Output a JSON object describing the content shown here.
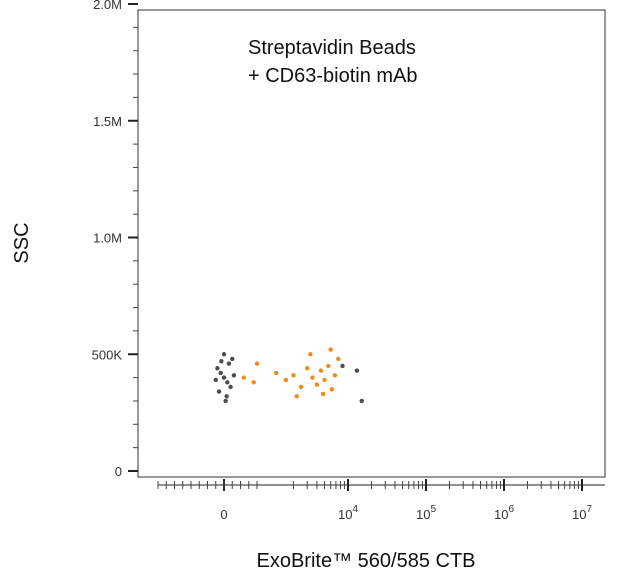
{
  "chart_data": {
    "type": "scatter",
    "title": "",
    "annotation": [
      "Streptavidin Beads",
      "+ CD63-biotin mAb"
    ],
    "xlabel": "ExoBrite™ 560/585 CTB",
    "ylabel": "SSC",
    "x_scale": "biexponential",
    "y_scale": "linear",
    "ylim": [
      0,
      2000000
    ],
    "y_ticks": [
      {
        "value": 0,
        "label": "0"
      },
      {
        "value": 500000,
        "label": "500K"
      },
      {
        "value": 1000000,
        "label": "1.0M"
      },
      {
        "value": 1500000,
        "label": "1.5M"
      },
      {
        "value": 2000000,
        "label": "2.0M"
      }
    ],
    "x_ticks": [
      {
        "value": 0,
        "base": "0",
        "exp": ""
      },
      {
        "value": 10000,
        "base": "10",
        "exp": "4"
      },
      {
        "value": 100000,
        "base": "10",
        "exp": "5"
      },
      {
        "value": 1000000,
        "base": "10",
        "exp": "6"
      },
      {
        "value": 10000000,
        "base": "10",
        "exp": "7"
      }
    ],
    "grid": false,
    "series": [
      {
        "color": "#4d4d4d",
        "points": [
          {
            "x": 0,
            "y": 400000
          },
          {
            "x": 100,
            "y": 380000
          },
          {
            "x": -100,
            "y": 420000
          },
          {
            "x": 200,
            "y": 360000
          },
          {
            "x": -200,
            "y": 440000
          },
          {
            "x": 150,
            "y": 460000
          },
          {
            "x": -150,
            "y": 340000
          },
          {
            "x": 50,
            "y": 300000
          },
          {
            "x": 250,
            "y": 480000
          },
          {
            "x": -250,
            "y": 390000
          },
          {
            "x": 300,
            "y": 410000
          },
          {
            "x": 0,
            "y": 500000
          },
          {
            "x": 80,
            "y": 320000
          },
          {
            "x": -80,
            "y": 470000
          }
        ]
      },
      {
        "color": "#f08a1c",
        "points": [
          {
            "x": 600,
            "y": 400000
          },
          {
            "x": 900,
            "y": 380000
          },
          {
            "x": 1200,
            "y": 420000
          },
          {
            "x": 1600,
            "y": 390000
          },
          {
            "x": 2000,
            "y": 410000
          },
          {
            "x": 2500,
            "y": 360000
          },
          {
            "x": 3000,
            "y": 440000
          },
          {
            "x": 3500,
            "y": 400000
          },
          {
            "x": 4000,
            "y": 370000
          },
          {
            "x": 4500,
            "y": 430000
          },
          {
            "x": 5000,
            "y": 390000
          },
          {
            "x": 5600,
            "y": 450000
          },
          {
            "x": 6200,
            "y": 350000
          },
          {
            "x": 6800,
            "y": 410000
          },
          {
            "x": 7500,
            "y": 480000
          },
          {
            "x": 2200,
            "y": 320000
          },
          {
            "x": 3300,
            "y": 500000
          },
          {
            "x": 4800,
            "y": 330000
          },
          {
            "x": 1000,
            "y": 460000
          },
          {
            "x": 6000,
            "y": 520000
          }
        ]
      },
      {
        "color": "#4d4d4d",
        "points": [
          {
            "x": 8500,
            "y": 450000
          },
          {
            "x": 13000,
            "y": 430000
          },
          {
            "x": 15000,
            "y": 300000
          }
        ]
      }
    ]
  }
}
